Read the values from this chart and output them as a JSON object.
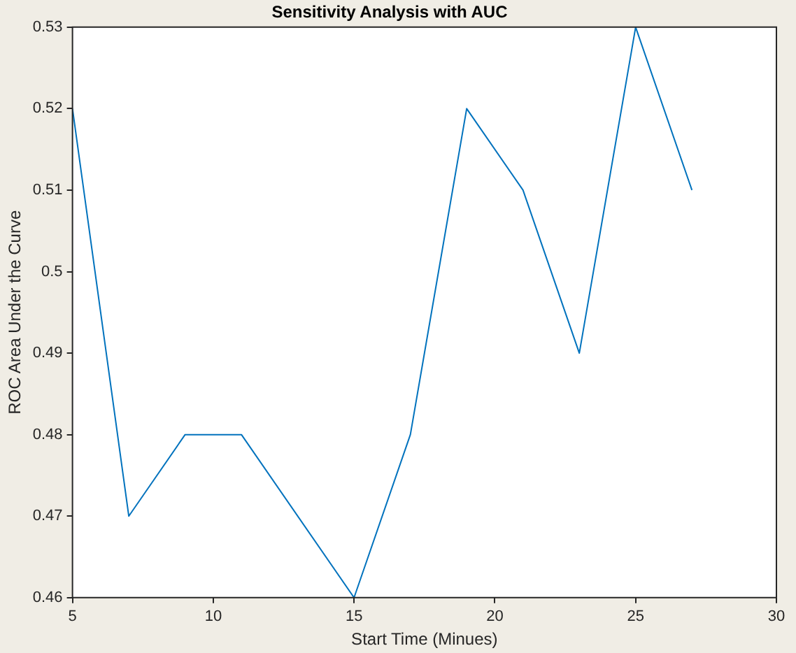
{
  "chart_data": {
    "type": "line",
    "title": "Sensitivity Analysis with AUC",
    "xlabel": "Start Time (Minues)",
    "ylabel": "ROC Area Under the Curve",
    "x": [
      5,
      7,
      9,
      11,
      15,
      17,
      19,
      21,
      23,
      25,
      27
    ],
    "series": [
      {
        "color": "#0072bd",
        "values": [
          0.52,
          0.47,
          0.48,
          0.48,
          0.46,
          0.48,
          0.52,
          0.51,
          0.49,
          0.53,
          0.51
        ]
      }
    ],
    "xlim": [
      5,
      30
    ],
    "xticks": [
      5,
      10,
      15,
      20,
      25,
      30
    ],
    "ylim": [
      0.46,
      0.53
    ],
    "yticks": [
      0.46,
      0.47,
      0.48,
      0.49,
      0.5,
      0.51,
      0.52,
      0.53
    ],
    "grid": false,
    "legend": false,
    "marker": "none",
    "line_style": "solid"
  }
}
